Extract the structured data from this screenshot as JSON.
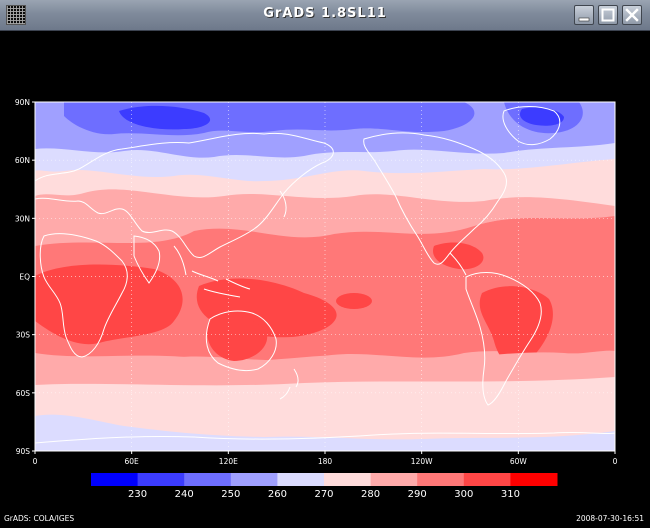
{
  "window": {
    "title": "GrADS 1.8SL11",
    "controls": [
      "window-menu-icon",
      "minimize-icon",
      "maximize-icon",
      "close-icon"
    ]
  },
  "footer": {
    "left": "GrADS: COLA/IGES",
    "right": "2008-07-30-16:51"
  },
  "chart_data": {
    "type": "heatmap",
    "projection": "latitude-longitude",
    "x_ticks": [
      "0",
      "60E",
      "120E",
      "180",
      "120W",
      "60W",
      "0"
    ],
    "y_ticks": [
      "90N",
      "60N",
      "30N",
      "EQ",
      "30S",
      "60S",
      "90S"
    ],
    "grid": true,
    "colorbar": {
      "labels": [
        "230",
        "240",
        "250",
        "260",
        "270",
        "280",
        "290",
        "300",
        "310"
      ],
      "colors": [
        "#0000ff",
        "#3c3cff",
        "#6e6eff",
        "#a0a0ff",
        "#dcdcff",
        "#ffdcdc",
        "#ffaaaa",
        "#ff7878",
        "#ff4646",
        "#ff0000"
      ]
    },
    "land_outline_color": "#ffffff"
  }
}
